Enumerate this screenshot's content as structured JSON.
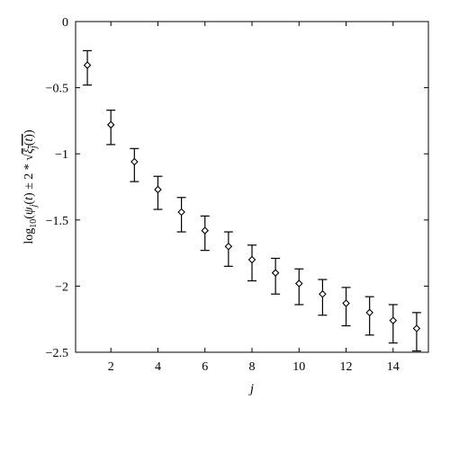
{
  "chart_data": {
    "type": "scatter",
    "title": "",
    "xlabel": "j",
    "ylabel": "log10(ψj(t) ± 2 * √ξj(t))",
    "xlim": [
      0.5,
      15.5
    ],
    "ylim": [
      -2.5,
      0
    ],
    "grid": false,
    "legend": "none",
    "xticks": [
      2,
      4,
      6,
      8,
      10,
      12,
      14
    ],
    "xtick_labels": [
      "2",
      "4",
      "6",
      "8",
      "10",
      "12",
      "14"
    ],
    "yticks": [
      0,
      -0.5,
      -1,
      -1.5,
      -2,
      -2.5
    ],
    "ytick_labels": [
      "0",
      "−0.5",
      "−1",
      "−1.5",
      "−2",
      "−2.5"
    ],
    "series": [
      {
        "marker": "diamond",
        "x": [
          1,
          2,
          3,
          4,
          5,
          6,
          7,
          8,
          9,
          10,
          11,
          12,
          13,
          14,
          15
        ],
        "y": [
          -0.33,
          -0.78,
          -1.06,
          -1.27,
          -1.44,
          -1.58,
          -1.7,
          -1.8,
          -1.9,
          -1.98,
          -2.06,
          -2.13,
          -2.2,
          -2.26,
          -2.32
        ],
        "y_low": [
          -0.48,
          -0.93,
          -1.21,
          -1.42,
          -1.59,
          -1.73,
          -1.85,
          -1.96,
          -2.06,
          -2.14,
          -2.22,
          -2.3,
          -2.37,
          -2.43,
          -2.49
        ],
        "y_high": [
          -0.22,
          -0.67,
          -0.96,
          -1.17,
          -1.33,
          -1.47,
          -1.59,
          -1.69,
          -1.79,
          -1.87,
          -1.95,
          -2.01,
          -2.08,
          -2.14,
          -2.2
        ]
      }
    ]
  },
  "colors": {
    "ink": "#000000",
    "marker_fill": "#ffffff"
  }
}
